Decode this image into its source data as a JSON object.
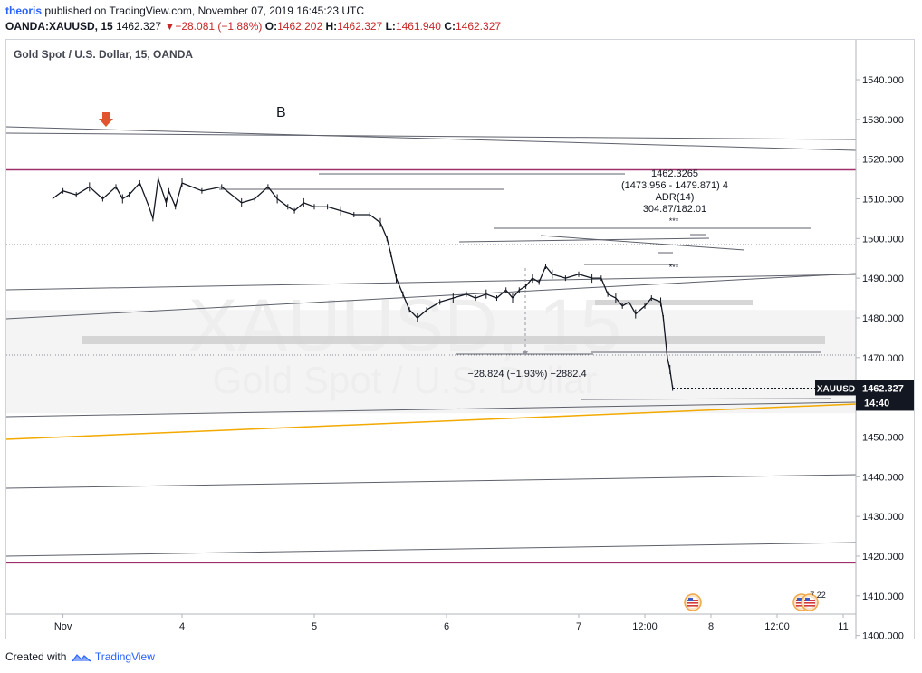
{
  "header": {
    "author": "theoris",
    "published_text": "published on TradingView.com, November 07, 2019 16:45:23 UTC",
    "symbol": "OANDA:XAUUSD, 15",
    "last": "1462.327",
    "change_arrow": "▼",
    "change": "−28.081 (−1.88%)",
    "open_label": "O:",
    "open": "1462.202",
    "high_label": "H:",
    "high": "1462.327",
    "low_label": "L:",
    "low": "1461.940",
    "close_label": "C:",
    "close": "1462.327"
  },
  "chart_title": "Gold Spot / U.S. Dollar, 15, OANDA",
  "footer": {
    "created_with": "Created with",
    "brand": "TradingView"
  },
  "colors": {
    "candle": "#131722",
    "magenta_line": "#a0306a",
    "orange_line": "#f2a900",
    "gray_line": "#5d606b",
    "zone": "#ececec",
    "watermark": "#eeeeee",
    "price_tag_bg": "#131722",
    "arrow": "#e0552f"
  },
  "chart_data": {
    "type": "candlestick",
    "title": "Gold Spot / U.S. Dollar, 15, OANDA",
    "symbol": "XAUUSD",
    "ylim": [
      1396,
      1543
    ],
    "yticks": [
      1400,
      1410,
      1420,
      1430,
      1440,
      1450,
      1460,
      1470,
      1480,
      1490,
      1500,
      1510,
      1520,
      1530,
      1540
    ],
    "ytick_labels": [
      "1400.000",
      "1410.000",
      "1420.000",
      "1430.000",
      "1440.000",
      "1450.000",
      "1460.000",
      "1470.000",
      "1480.000",
      "1490.000",
      "1500.000",
      "1510.000",
      "1520.000",
      "1530.000",
      "1540.000"
    ],
    "xlim": [
      -0.98,
      8.9
    ],
    "xticks": [
      {
        "x": -0.9,
        "label": "Nov"
      },
      {
        "x": 0.0,
        "label": "4"
      },
      {
        "x": 1.0,
        "label": "5"
      },
      {
        "x": 2.0,
        "label": "6"
      },
      {
        "x": 3.0,
        "label": "7"
      },
      {
        "x": 3.5,
        "label": "12:00"
      },
      {
        "x": 4.0,
        "label": "8"
      },
      {
        "x": 4.5,
        "label": "12:00"
      },
      {
        "x": 5.0,
        "label": "11"
      }
    ],
    "last_price": 1462.327,
    "last_price_label": "1462.327",
    "symbol_tag": "XAUUSD",
    "countdown": "14:40",
    "watermark_symbol": "XAUUSD, 15",
    "watermark_name": "Gold Spot / U.S. Dollar",
    "series_points": [
      [
        -0.98,
        1510
      ],
      [
        -0.9,
        1512
      ],
      [
        -0.8,
        1511
      ],
      [
        -0.7,
        1513
      ],
      [
        -0.6,
        1510
      ],
      [
        -0.5,
        1513
      ],
      [
        -0.45,
        1510
      ],
      [
        -0.4,
        1511
      ],
      [
        -0.32,
        1514
      ],
      [
        -0.25,
        1508
      ],
      [
        -0.22,
        1505
      ],
      [
        -0.18,
        1515
      ],
      [
        -0.12,
        1509
      ],
      [
        -0.1,
        1512
      ],
      [
        -0.05,
        1508
      ],
      [
        0.0,
        1514
      ],
      [
        0.15,
        1512
      ],
      [
        0.3,
        1513
      ],
      [
        0.45,
        1509
      ],
      [
        0.55,
        1510
      ],
      [
        0.65,
        1513
      ],
      [
        0.72,
        1510
      ],
      [
        0.8,
        1508
      ],
      [
        0.85,
        1507
      ],
      [
        0.92,
        1509
      ],
      [
        1.0,
        1508
      ],
      [
        1.1,
        1508
      ],
      [
        1.2,
        1507
      ],
      [
        1.3,
        1506
      ],
      [
        1.42,
        1506
      ],
      [
        1.5,
        1504
      ],
      [
        1.55,
        1500
      ],
      [
        1.58,
        1496
      ],
      [
        1.62,
        1490
      ],
      [
        1.67,
        1486
      ],
      [
        1.72,
        1482
      ],
      [
        1.78,
        1480
      ],
      [
        1.85,
        1482
      ],
      [
        1.95,
        1484
      ],
      [
        2.05,
        1485
      ],
      [
        2.15,
        1486
      ],
      [
        2.22,
        1485
      ],
      [
        2.3,
        1486
      ],
      [
        2.38,
        1485
      ],
      [
        2.45,
        1487
      ],
      [
        2.5,
        1485
      ],
      [
        2.55,
        1487
      ],
      [
        2.6,
        1488
      ],
      [
        2.65,
        1490
      ],
      [
        2.7,
        1489
      ],
      [
        2.75,
        1493
      ],
      [
        2.8,
        1491
      ],
      [
        2.9,
        1490
      ],
      [
        3.0,
        1491
      ],
      [
        3.1,
        1490
      ],
      [
        3.17,
        1490
      ],
      [
        3.22,
        1486
      ],
      [
        3.28,
        1485
      ],
      [
        3.33,
        1483
      ],
      [
        3.38,
        1484
      ],
      [
        3.43,
        1481
      ],
      [
        3.5,
        1483
      ],
      [
        3.55,
        1485
      ],
      [
        3.62,
        1484
      ],
      [
        3.64,
        1480
      ],
      [
        3.67,
        1470
      ],
      [
        3.69,
        1467
      ],
      [
        3.71,
        1462.3
      ]
    ],
    "annotations": {
      "stats_text": [
        "1462.3265",
        "(1473.956 - 1479.871)  4",
        "ADR(14)",
        "304.87/182.01"
      ],
      "measure_label": "−28.824 (−1.93%) −2882.4",
      "wave_label": "B",
      "stars": "***",
      "event_count": "7  22"
    },
    "horizontal_levels": [
      {
        "price": 1517.3,
        "color": "#a0306a"
      },
      {
        "price": 1418.3,
        "color": "#a0306a"
      }
    ],
    "gray_band": {
      "low": 1456,
      "high": 1482
    }
  }
}
